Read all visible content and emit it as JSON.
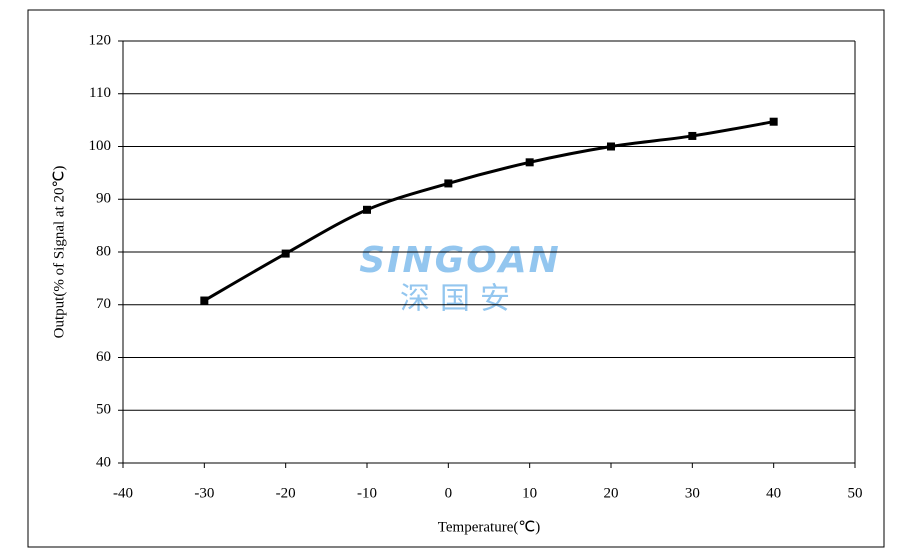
{
  "chart_data": {
    "type": "line",
    "x_label": "Temperature(℃)",
    "y_label": "Output(% of Signal at 20℃)",
    "x": [
      -30,
      -20,
      -10,
      0,
      10,
      20,
      30,
      40
    ],
    "series": [
      {
        "color": "#000000",
        "values": [
          70.8,
          79.7,
          88,
          93,
          97,
          100,
          102,
          104.7
        ]
      }
    ],
    "xlim": [
      -40,
      50
    ],
    "xticks": [
      -40,
      -30,
      -20,
      -10,
      0,
      10,
      20,
      30,
      40,
      50
    ],
    "ylim": [
      40,
      120
    ],
    "yticks": [
      40,
      50,
      60,
      70,
      80,
      90,
      100,
      110,
      120
    ],
    "grid": true,
    "smooth": true,
    "watermark": {
      "brand": "SINGOAN",
      "chinese": "深国安"
    }
  }
}
